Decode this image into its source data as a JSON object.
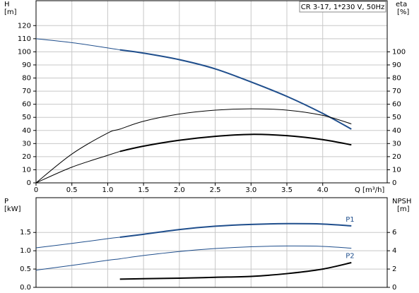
{
  "chart_data": [
    {
      "type": "line",
      "title": "CR 3-17, 1*230 V, 50Hz",
      "y_label": "H",
      "y_unit": "[m]",
      "y2_label": "eta",
      "y2_unit": "[%]",
      "x_label": "Q [m³/h]",
      "x": [
        0,
        0.5,
        1,
        1.17,
        1.5,
        2,
        2.5,
        3,
        3.5,
        4,
        4.4
      ],
      "xlim": [
        0,
        4.9
      ],
      "xticks": [
        0,
        0.5,
        {
          "value": 1,
          "label": "1.0"
        },
        1.5,
        {
          "value": 2,
          "label": "2.0"
        },
        2.5,
        {
          "value": 3,
          "label": "3.0"
        },
        3.5,
        {
          "value": 4,
          "label": "4.0"
        }
      ],
      "ylim": [
        0,
        139
      ],
      "yticks": [
        0,
        10,
        20,
        30,
        40,
        50,
        60,
        70,
        80,
        90,
        100,
        110,
        120
      ],
      "y2lim": [
        0,
        139
      ],
      "y2ticks": [
        0,
        10,
        20,
        30,
        40,
        50,
        60,
        70,
        80,
        90,
        100
      ],
      "grid": true,
      "series": [
        {
          "axis": "y",
          "color": "#1f4e8c",
          "width": 1,
          "values": [
            110,
            107,
            103,
            101.5,
            null,
            null,
            null,
            null,
            null,
            null,
            null
          ]
        },
        {
          "axis": "y",
          "color": "#1f4e8c",
          "width": 2,
          "values": [
            null,
            null,
            null,
            101.5,
            99,
            94,
            87,
            77,
            66,
            53,
            41
          ]
        },
        {
          "axis": "y2",
          "color": "#000000",
          "width": 1,
          "values": [
            0,
            22,
            38,
            41,
            47,
            52.5,
            55.5,
            56.5,
            55.5,
            51.5,
            45
          ]
        },
        {
          "axis": "y2",
          "color": "#000000",
          "width": 1,
          "values": [
            0,
            12,
            21,
            24,
            null,
            null,
            null,
            null,
            null,
            null,
            null
          ]
        },
        {
          "axis": "y2",
          "color": "#000000",
          "width": 2,
          "values": [
            null,
            null,
            null,
            24,
            28,
            32.5,
            35.5,
            37,
            36,
            33,
            29
          ]
        }
      ]
    },
    {
      "type": "line",
      "y_label": "P",
      "y_unit": "[kW]",
      "y2_label": "NPSH",
      "y2_unit": "[m]",
      "x": [
        0,
        0.5,
        1,
        1.17,
        1.5,
        2,
        2.5,
        3,
        3.5,
        4,
        4.4
      ],
      "xlim": [
        0,
        4.9
      ],
      "ylim": [
        0,
        2.45
      ],
      "yticks": [
        {
          "value": 0,
          "label": "0.0"
        },
        0.5,
        {
          "value": 1,
          "label": "1.0"
        },
        1.5
      ],
      "y2lim": [
        0,
        9.8
      ],
      "y2ticks": [
        0,
        2,
        4,
        6
      ],
      "grid": true,
      "series": [
        {
          "axis": "y",
          "color": "#1f4e8c",
          "width": 1,
          "values": [
            1.08,
            1.2,
            1.33,
            1.37,
            null,
            null,
            null,
            null,
            null,
            null,
            null
          ]
        },
        {
          "name": "P1",
          "axis": "y",
          "color": "#1f4e8c",
          "width": 2,
          "values": [
            null,
            null,
            null,
            1.37,
            1.45,
            1.58,
            1.67,
            1.72,
            1.74,
            1.73,
            1.68
          ]
        },
        {
          "name": "P2",
          "axis": "y",
          "color": "#1f4e8c",
          "width": 1,
          "values": [
            0.47,
            0.6,
            0.74,
            0.78,
            0.87,
            0.98,
            1.06,
            1.11,
            1.13,
            1.12,
            1.07
          ]
        },
        {
          "axis": "y2",
          "color": "#000000",
          "width": 2,
          "values": [
            null,
            null,
            null,
            0.9,
            0.95,
            1.0,
            1.1,
            1.2,
            1.5,
            2.0,
            2.7
          ]
        }
      ]
    }
  ]
}
